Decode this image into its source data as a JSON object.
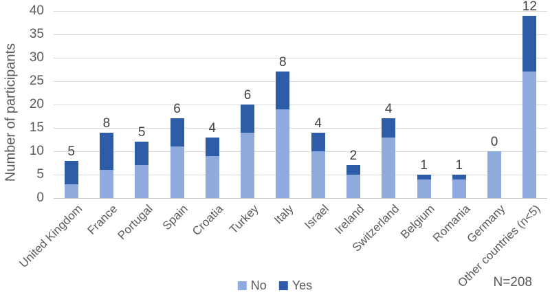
{
  "chart_data": {
    "type": "bar",
    "stacked": true,
    "title": "",
    "xlabel": "",
    "ylabel": "Number of participants",
    "ylim": [
      0,
      40
    ],
    "yticks": [
      0,
      5,
      10,
      15,
      20,
      25,
      30,
      35,
      40
    ],
    "grid": true,
    "legend_position": "bottom-center",
    "categories": [
      "United Kingdom",
      "France",
      "Portugal",
      "Spain",
      "Croatia",
      "Turkey",
      "Italy",
      "Israel",
      "Ireland",
      "Switzerland",
      "Belgium",
      "Romania",
      "Germany",
      "Other countries (n<5)"
    ],
    "series": [
      {
        "name": "No",
        "color": "#8FAADC",
        "values": [
          3,
          6,
          7,
          11,
          9,
          14,
          19,
          10,
          5,
          13,
          4,
          4,
          10,
          27
        ]
      },
      {
        "name": "Yes",
        "color": "#2E5CA8",
        "values": [
          5,
          8,
          5,
          6,
          4,
          6,
          8,
          4,
          2,
          4,
          1,
          1,
          0,
          12
        ]
      }
    ],
    "totals": [
      8,
      14,
      12,
      17,
      13,
      20,
      27,
      14,
      7,
      17,
      5,
      5,
      10,
      39
    ],
    "bar_labels": [
      "5",
      "8",
      "5",
      "6",
      "4",
      "6",
      "8",
      "4",
      "2",
      "4",
      "1",
      "1",
      "0",
      "12"
    ],
    "annotation": "N=208",
    "colors": {
      "gridline": "#D9D9D9",
      "axis_line": "#C9C9C9",
      "tick_text": "#595959",
      "label_text": "#404040"
    }
  }
}
